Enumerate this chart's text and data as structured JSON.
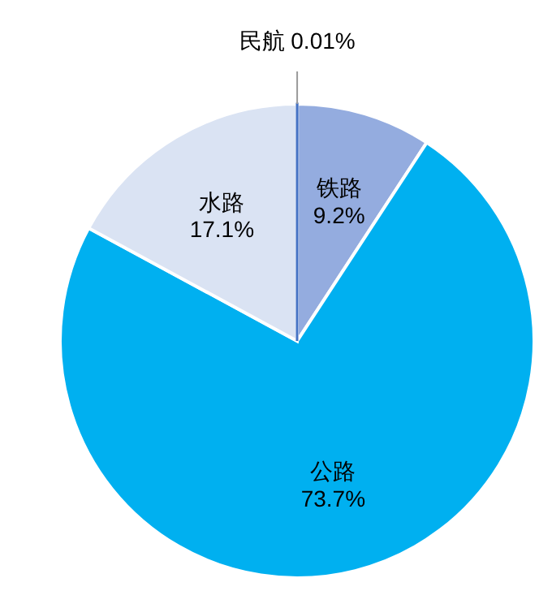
{
  "chart_data": {
    "type": "pie",
    "categories": [
      "民航",
      "铁路",
      "公路",
      "水路"
    ],
    "values": [
      0.01,
      9.2,
      73.7,
      17.1
    ],
    "colors": [
      "#4472c4",
      "#94acdf",
      "#00b0f0",
      "#dae3f3"
    ],
    "value_labels": [
      "0.01%",
      "9.2%",
      "73.7%",
      "17.1%"
    ]
  }
}
